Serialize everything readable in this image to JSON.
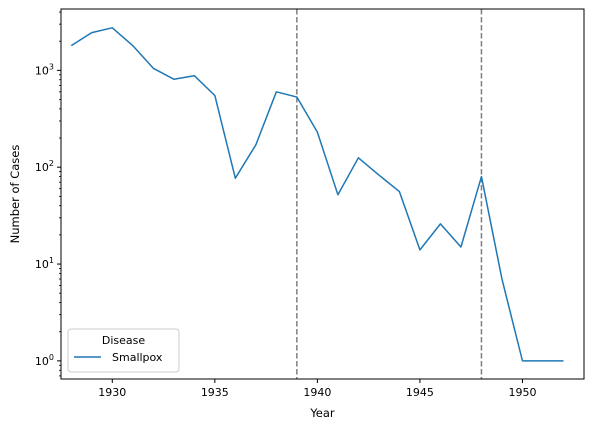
{
  "chart_data": {
    "type": "line",
    "title": "",
    "xlabel": "Year",
    "ylabel": "Number of Cases",
    "xlim": [
      1927.5,
      1953.0
    ],
    "ylim": [
      0.65,
      4300
    ],
    "yscale": "log",
    "grid": false,
    "x_ticks": [
      1930,
      1935,
      1940,
      1945,
      1950
    ],
    "x_tick_labels": [
      "1930",
      "1935",
      "1940",
      "1945",
      "1950"
    ],
    "y_ticks": [
      1,
      10,
      100,
      1000
    ],
    "y_tick_labels": [
      {
        "base": "10",
        "exp": "0"
      },
      {
        "base": "10",
        "exp": "1"
      },
      {
        "base": "10",
        "exp": "2"
      },
      {
        "base": "10",
        "exp": "3"
      }
    ],
    "legend": {
      "title": "Disease",
      "position": "lower-left"
    },
    "series": [
      {
        "name": "Smallpox",
        "color": "#1f77b4",
        "x": [
          1928,
          1929,
          1930,
          1931,
          1932,
          1933,
          1934,
          1935,
          1936,
          1937,
          1938,
          1939,
          1940,
          1941,
          1942,
          1943,
          1944,
          1945,
          1946,
          1947,
          1948,
          1949,
          1950,
          1951,
          1952
        ],
        "y": [
          1800,
          2450,
          2750,
          1800,
          1050,
          810,
          880,
          550,
          77,
          170,
          600,
          530,
          230,
          52,
          125,
          83,
          56,
          14,
          26,
          15,
          80,
          7,
          1,
          1,
          1
        ]
      }
    ],
    "reference_lines": [
      {
        "x": 1939,
        "style": "dashed",
        "color": "#808080"
      },
      {
        "x": 1948,
        "style": "dashed",
        "color": "#808080"
      }
    ]
  }
}
